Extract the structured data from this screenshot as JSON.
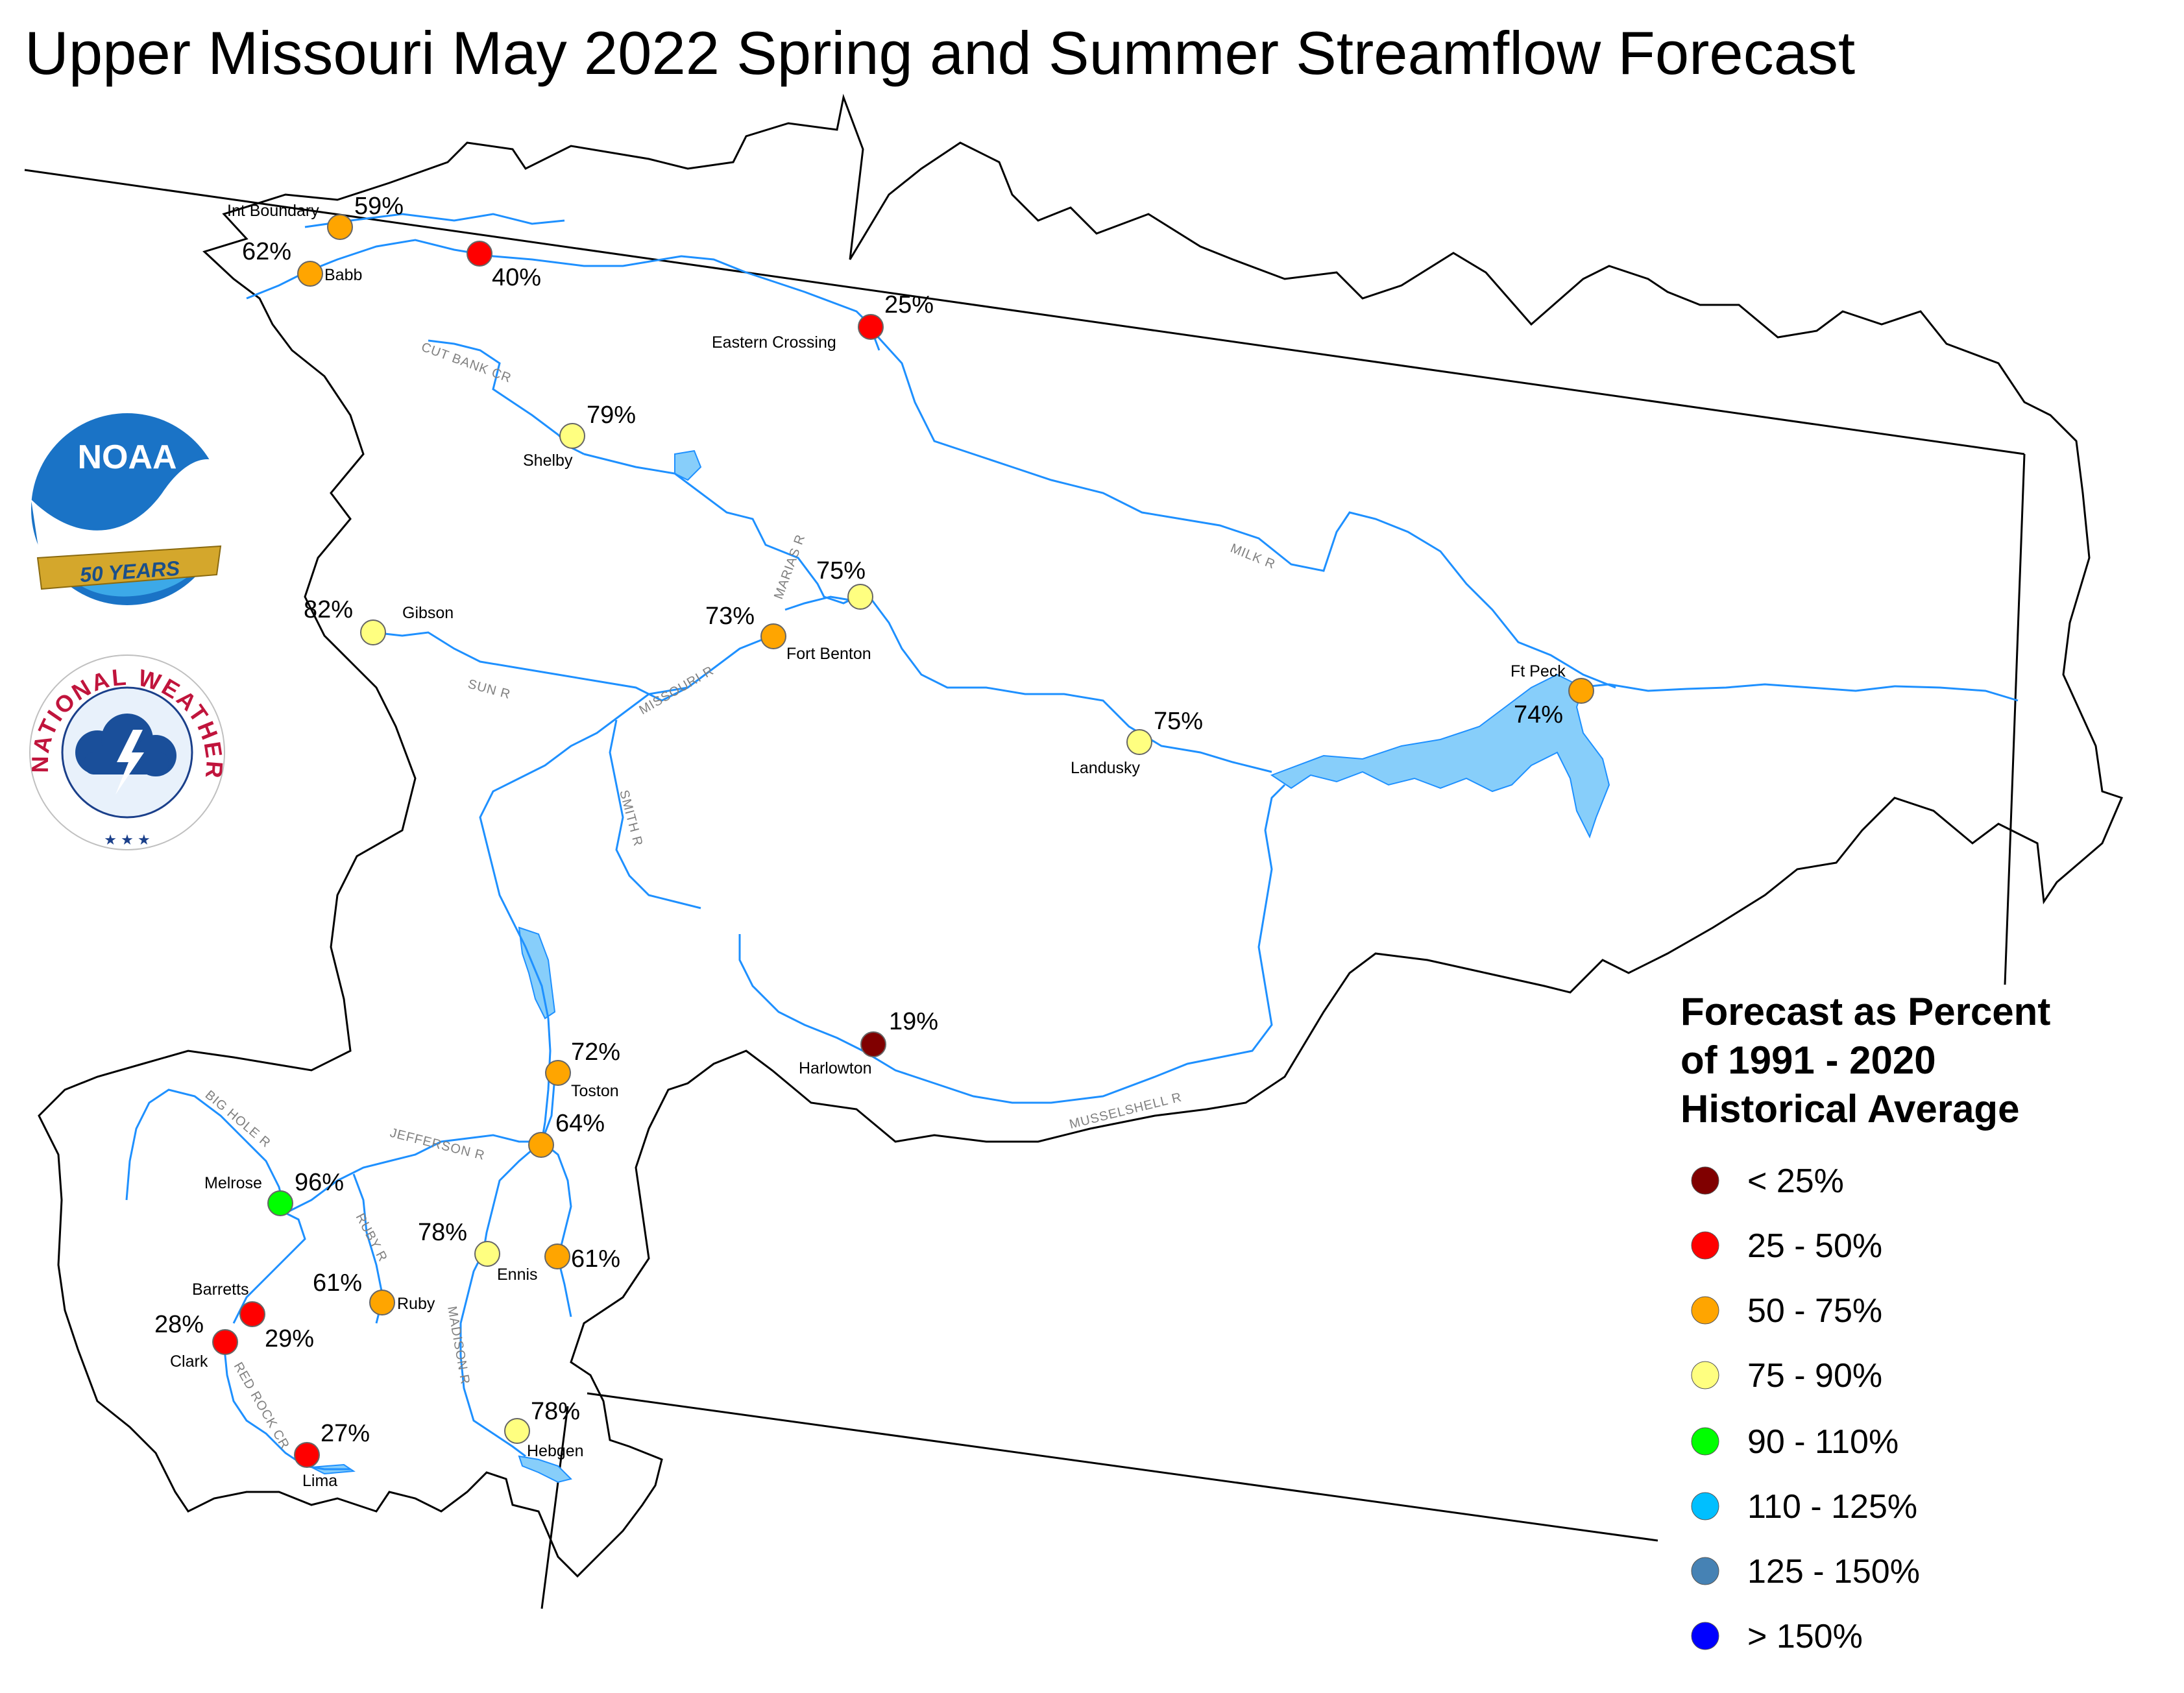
{
  "title": "Upper Missouri May 2022 Spring and Summer Streamflow Forecast",
  "logos": {
    "noaa": {
      "text": "NOAA",
      "banner": "50 YEARS"
    },
    "nws": {
      "text": "NATIONAL WEATHER SERVICE"
    }
  },
  "colors": {
    "lt25": "#800000",
    "c25_50": "#ff0000",
    "c50_75": "#ffa500",
    "c75_90": "#ffff80",
    "c90_110": "#00ff00",
    "c110_125": "#00bfff",
    "c125_150": "#4682b4",
    "gt150": "#0000ff",
    "river": "#1e90ff",
    "lake": "#87cefa"
  },
  "stations": [
    {
      "id": "int-boundary",
      "name": "Int Boundary",
      "pct": "59%",
      "cls": "c50_75"
    },
    {
      "id": "babb",
      "name": "Babb",
      "pct": "62%",
      "cls": "c50_75"
    },
    {
      "id": "st-mary-crossing",
      "name": "",
      "pct": "40%",
      "cls": "c25_50"
    },
    {
      "id": "eastern-crossing",
      "name": "Eastern Crossing",
      "pct": "25%",
      "cls": "c25_50"
    },
    {
      "id": "shelby",
      "name": "Shelby",
      "pct": "79%",
      "cls": "c75_90"
    },
    {
      "id": "marias-mouth",
      "name": "",
      "pct": "75%",
      "cls": "c75_90"
    },
    {
      "id": "fort-benton",
      "name": "Fort Benton",
      "pct": "73%",
      "cls": "c50_75"
    },
    {
      "id": "gibson",
      "name": "Gibson",
      "pct": "82%",
      "cls": "c75_90"
    },
    {
      "id": "landusky",
      "name": "Landusky",
      "pct": "75%",
      "cls": "c75_90"
    },
    {
      "id": "ft-peck",
      "name": "Ft Peck",
      "pct": "74%",
      "cls": "c50_75"
    },
    {
      "id": "harlowton",
      "name": "Harlowton",
      "pct": "19%",
      "cls": "lt25"
    },
    {
      "id": "toston",
      "name": "Toston",
      "pct": "72%",
      "cls": "c50_75"
    },
    {
      "id": "three-forks",
      "name": "",
      "pct": "64%",
      "cls": "c50_75"
    },
    {
      "id": "melrose",
      "name": "Melrose",
      "pct": "96%",
      "cls": "c90_110"
    },
    {
      "id": "ennis",
      "name": "Ennis",
      "pct": "78%",
      "cls": "c75_90"
    },
    {
      "id": "gallatin",
      "name": "",
      "pct": "61%",
      "cls": "c50_75"
    },
    {
      "id": "ruby",
      "name": "Ruby",
      "pct": "61%",
      "cls": "c50_75"
    },
    {
      "id": "barretts",
      "name": "Barretts",
      "pct": "29%",
      "cls": "c25_50"
    },
    {
      "id": "clark",
      "name": "Clark",
      "pct": "28%",
      "cls": "c25_50"
    },
    {
      "id": "lima",
      "name": "Lima",
      "pct": "27%",
      "cls": "c25_50"
    },
    {
      "id": "hebgen",
      "name": "Hebgen",
      "pct": "78%",
      "cls": "c75_90"
    }
  ],
  "rivers": {
    "cut_bank": "CUT BANK CR",
    "marias": "MARIAS R",
    "sun": "SUN R",
    "missouri": "MISSOURI R",
    "milk": "MILK R",
    "smith": "SMITH R",
    "musselshell": "MUSSELSHELL R",
    "big_hole": "BIG HOLE R",
    "jefferson": "JEFFERSON R",
    "ruby": "RUBY R",
    "madison": "MADISON R",
    "red_rock": "RED ROCK CR"
  },
  "legend": {
    "heading": [
      "Forecast as Percent",
      "of 1991 - 2020",
      "Historical Average"
    ],
    "items": [
      {
        "label": "< 25%",
        "cls": "lt25"
      },
      {
        "label": "25 - 50%",
        "cls": "c25_50"
      },
      {
        "label": "50 - 75%",
        "cls": "c50_75"
      },
      {
        "label": "75 - 90%",
        "cls": "c75_90"
      },
      {
        "label": "90 - 110%",
        "cls": "c90_110"
      },
      {
        "label": "110 - 125%",
        "cls": "c110_125"
      },
      {
        "label": "125 - 150%",
        "cls": "c125_150"
      },
      {
        "label": "> 150%",
        "cls": "gt150"
      }
    ]
  }
}
